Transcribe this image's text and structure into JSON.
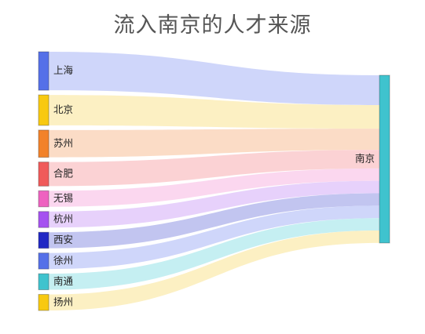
{
  "chart_data": {
    "type": "sankey",
    "title": "流入南京的人才来源",
    "target": {
      "name": "南京",
      "color": "#3fc3ce"
    },
    "links": [
      {
        "source": "上海",
        "value": 24,
        "color": "#5570e8",
        "flow": "#ccd4fa"
      },
      {
        "source": "北京",
        "value": 19,
        "color": "#f8c910",
        "flow": "#fcefc0"
      },
      {
        "source": "苏州",
        "value": 17,
        "color": "#f2822a",
        "flow": "#fbdac3"
      },
      {
        "source": "合肥",
        "value": 15,
        "color": "#f05a5a",
        "flow": "#fbd0d2"
      },
      {
        "source": "无锡",
        "value": 10,
        "color": "#ee62c0",
        "flow": "#fbd5ee"
      },
      {
        "source": "杭州",
        "value": 10,
        "color": "#a552f0",
        "flow": "#e6cffb"
      },
      {
        "source": "西安",
        "value": 10,
        "color": "#2128c4",
        "flow": "#bfc2ef"
      },
      {
        "source": "徐州",
        "value": 10,
        "color": "#5570e8",
        "flow": "#ccd4fa"
      },
      {
        "source": "南通",
        "value": 10,
        "color": "#3fc3ce",
        "flow": "#c2eef1"
      },
      {
        "source": "扬州",
        "value": 10,
        "color": "#f8c910",
        "flow": "#fcefc0"
      }
    ]
  }
}
